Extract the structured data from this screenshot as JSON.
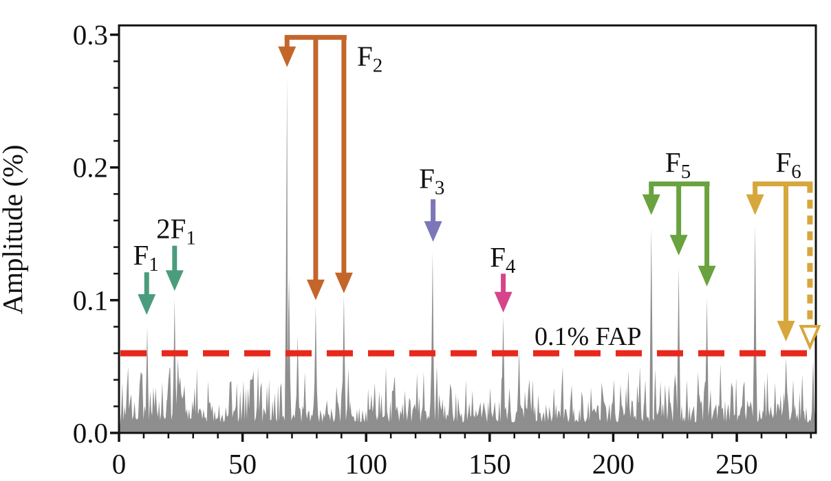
{
  "figure_type": "periodogram",
  "chart_data": {
    "type": "line",
    "title": "",
    "xlabel": "",
    "ylabel": "Amplitude (%)",
    "xlim": [
      0,
      282
    ],
    "ylim": [
      0,
      0.307
    ],
    "x_major_ticks": [
      0,
      50,
      100,
      150,
      200,
      250
    ],
    "x_tick_labels": [
      "0",
      "50",
      "100",
      "150",
      "200",
      "250"
    ],
    "x_minor_step": 10,
    "y_major_ticks": [
      0.0,
      0.1,
      0.2,
      0.3
    ],
    "y_tick_labels": [
      "0.0",
      "0.1",
      "0.2",
      "0.3"
    ],
    "y_minor_step": 0.02,
    "grid": "off",
    "series_color": "#8e8e8e",
    "axis_color": "#111111",
    "threshold": {
      "value": 0.06,
      "label": "0.1% FAP",
      "color": "#e8281c",
      "style": "dashed",
      "label_at": {
        "f": 189.8,
        "a": 0.0741
      }
    },
    "peaks": [
      {
        "f": 11.4,
        "amp": 0.08,
        "id": "F1"
      },
      {
        "f": 22.5,
        "amp": 0.101,
        "id": "2F1"
      },
      {
        "f": 68.0,
        "amp": 0.268,
        "id": "F2"
      },
      {
        "f": 79.6,
        "amp": 0.096,
        "id": "F2"
      },
      {
        "f": 91.0,
        "amp": 0.104,
        "id": "F2"
      },
      {
        "f": 126.9,
        "amp": 0.136,
        "id": "F3"
      },
      {
        "f": 155.5,
        "amp": 0.088,
        "id": "F4"
      },
      {
        "f": 215.4,
        "amp": 0.155,
        "id": "F5"
      },
      {
        "f": 226.5,
        "amp": 0.125,
        "id": "F5"
      },
      {
        "f": 237.9,
        "amp": 0.102,
        "id": "F5"
      },
      {
        "f": 257.4,
        "amp": 0.157,
        "id": "F6"
      },
      {
        "f": 269.9,
        "amp": 0.057,
        "id": "F6"
      },
      {
        "f": 280.9,
        "amp": 0.055,
        "id": "F6"
      }
    ],
    "secondary_peaks": [
      {
        "f": 3.2,
        "amp": 0.034
      },
      {
        "f": 8.3,
        "amp": 0.036
      },
      {
        "f": 13.9,
        "amp": 0.034
      },
      {
        "f": 17.5,
        "amp": 0.038
      },
      {
        "f": 20.0,
        "amp": 0.04
      },
      {
        "f": 23.8,
        "amp": 0.056
      },
      {
        "f": 26.5,
        "amp": 0.036
      },
      {
        "f": 30.6,
        "amp": 0.034
      },
      {
        "f": 44.8,
        "amp": 0.038
      },
      {
        "f": 57.2,
        "amp": 0.034
      },
      {
        "f": 63.0,
        "amp": 0.03
      },
      {
        "f": 68.8,
        "amp": 0.118
      },
      {
        "f": 72.3,
        "amp": 0.074
      },
      {
        "f": 75.2,
        "amp": 0.046
      },
      {
        "f": 88.0,
        "amp": 0.035
      },
      {
        "f": 92.8,
        "amp": 0.049
      },
      {
        "f": 103.5,
        "amp": 0.038
      },
      {
        "f": 111.0,
        "amp": 0.032
      },
      {
        "f": 120.6,
        "amp": 0.045
      },
      {
        "f": 128.6,
        "amp": 0.051
      },
      {
        "f": 134.0,
        "amp": 0.037
      },
      {
        "f": 143.0,
        "amp": 0.032
      },
      {
        "f": 150.2,
        "amp": 0.034
      },
      {
        "f": 158.0,
        "amp": 0.034
      },
      {
        "f": 161.9,
        "amp": 0.063
      },
      {
        "f": 167.4,
        "amp": 0.04
      },
      {
        "f": 176.0,
        "amp": 0.034
      },
      {
        "f": 183.2,
        "amp": 0.036
      },
      {
        "f": 191.0,
        "amp": 0.034
      },
      {
        "f": 200.3,
        "amp": 0.04
      },
      {
        "f": 206.1,
        "amp": 0.047
      },
      {
        "f": 210.8,
        "amp": 0.05
      },
      {
        "f": 213.0,
        "amp": 0.04
      },
      {
        "f": 217.0,
        "amp": 0.048
      },
      {
        "f": 222.5,
        "amp": 0.036
      },
      {
        "f": 229.8,
        "amp": 0.04
      },
      {
        "f": 234.3,
        "amp": 0.046
      },
      {
        "f": 243.4,
        "amp": 0.052
      },
      {
        "f": 247.8,
        "amp": 0.038
      },
      {
        "f": 252.6,
        "amp": 0.035
      },
      {
        "f": 261.3,
        "amp": 0.04
      },
      {
        "f": 265.5,
        "amp": 0.038
      },
      {
        "f": 272.8,
        "amp": 0.04
      },
      {
        "f": 276.5,
        "amp": 0.044
      }
    ],
    "noise": {
      "floor_min": 0.005,
      "floor_typ": 0.018,
      "floor_max": 0.05,
      "seed": 11
    },
    "annotations": [
      {
        "id": "F1",
        "label": {
          "prefix": "",
          "text": "F",
          "sub": "1"
        },
        "color": "#4a9c7c",
        "type": "arrow",
        "arrow_f": 11.2,
        "label_at": {
          "f": 10.9,
          "a": 0.134
        },
        "arrow_from_a": 0.121,
        "arrow_tip_a": 0.089
      },
      {
        "id": "2F1",
        "label": {
          "prefix": "2",
          "text": "F",
          "sub": "1"
        },
        "color": "#4a9c7c",
        "type": "arrow",
        "arrow_f": 22.5,
        "label_at": {
          "f": 23.1,
          "a": 0.154
        },
        "arrow_from_a": 0.141,
        "arrow_tip_a": 0.107
      },
      {
        "id": "F2",
        "label": {
          "prefix": "",
          "text": "F",
          "sub": "2"
        },
        "color": "#c4662b",
        "type": "bracket",
        "bar_a": 0.298,
        "label_at": {
          "f": 101.5,
          "a": 0.284
        },
        "targets": [
          {
            "f": 68.0,
            "tip_a": 0.2756
          },
          {
            "f": 79.6,
            "tip_a": 0.1
          },
          {
            "f": 91.0,
            "tip_a": 0.1052
          }
        ]
      },
      {
        "id": "F3",
        "label": {
          "prefix": "",
          "text": "F",
          "sub": "3"
        },
        "color": "#7b77b8",
        "type": "arrow",
        "arrow_f": 127.1,
        "label_at": {
          "f": 126.6,
          "a": 0.1917
        },
        "arrow_from_a": 0.176,
        "arrow_tip_a": 0.144
      },
      {
        "id": "F4",
        "label": {
          "prefix": "",
          "text": "F",
          "sub": "4"
        },
        "color": "#d5458c",
        "type": "arrow",
        "arrow_f": 155.5,
        "label_at": {
          "f": 155.3,
          "a": 0.1326
        },
        "arrow_from_a": 0.12,
        "arrow_tip_a": 0.0907
      },
      {
        "id": "F5",
        "label": {
          "prefix": "",
          "text": "F",
          "sub": "5"
        },
        "color": "#69a23e",
        "type": "bracket",
        "bar_a": 0.1876,
        "label_at": {
          "f": 226.2,
          "a": 0.204
        },
        "targets": [
          {
            "f": 215.4,
            "tip_a": 0.1642
          },
          {
            "f": 226.5,
            "tip_a": 0.1337
          },
          {
            "f": 237.9,
            "tip_a": 0.1104
          }
        ]
      },
      {
        "id": "F6",
        "label": {
          "prefix": "",
          "text": "F",
          "sub": "6"
        },
        "color": "#d7a63c",
        "type": "bracket",
        "bar_a": 0.1876,
        "label_at": {
          "f": 270.9,
          "a": 0.204
        },
        "targets": [
          {
            "f": 257.4,
            "tip_a": 0.1642
          },
          {
            "f": 269.9,
            "tip_a": 0.0689
          },
          {
            "f": 279.6,
            "tip_a": 0.0648,
            "dashed": true,
            "hollow": true
          }
        ]
      }
    ]
  }
}
